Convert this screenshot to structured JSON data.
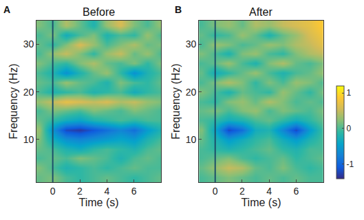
{
  "chart_data": [
    {
      "type": "heatmap",
      "panel": "A",
      "title": "Before",
      "x_label": "Time (s)",
      "y_label": "Frequency (Hz)",
      "x": [
        -1,
        0,
        1,
        2,
        3,
        4,
        5,
        6,
        7,
        8
      ],
      "y": [
        2,
        4,
        6,
        8,
        10,
        12,
        14,
        16,
        18,
        20,
        22,
        24,
        26,
        28,
        30,
        32,
        34
      ],
      "z": [
        [
          0.1,
          0.2,
          0,
          -0.1,
          0,
          0.1,
          0,
          -0.1,
          0,
          0.1
        ],
        [
          0.2,
          0,
          -0.2,
          -0.1,
          0,
          -0.1,
          0,
          0.1,
          0,
          0
        ],
        [
          0,
          0.1,
          0,
          0.2,
          0.1,
          0,
          -0.2,
          0,
          0.1,
          0
        ],
        [
          0.1,
          0,
          -0.2,
          -0.3,
          -0.1,
          0,
          -0.1,
          -0.2,
          0,
          0.1
        ],
        [
          0.2,
          -0.3,
          -0.6,
          -0.7,
          -0.6,
          -0.5,
          -0.4,
          -0.5,
          -0.2,
          0
        ],
        [
          0.3,
          -0.6,
          -1.2,
          -1.3,
          -1.1,
          -0.9,
          -0.7,
          -0.9,
          -0.5,
          -0.2
        ],
        [
          0.1,
          -0.1,
          -0.3,
          -0.4,
          -0.2,
          -0.1,
          0,
          -0.1,
          0,
          0
        ],
        [
          0,
          0.2,
          0.1,
          0,
          0.2,
          0.1,
          0,
          0.2,
          0.1,
          0
        ],
        [
          0.3,
          0.5,
          0.7,
          0.6,
          0.5,
          0.6,
          0.4,
          0.5,
          0.3,
          0.2
        ],
        [
          0,
          -0.2,
          -0.1,
          0,
          -0.2,
          -0.1,
          0,
          -0.3,
          -0.1,
          0
        ],
        [
          0.1,
          0,
          0.3,
          0.1,
          0,
          -0.2,
          0.2,
          0,
          -0.1,
          0.1
        ],
        [
          0,
          -0.2,
          -0.6,
          -0.2,
          0.1,
          0.3,
          -0.1,
          -0.6,
          -0.2,
          0
        ],
        [
          0.2,
          0,
          -0.1,
          0.2,
          0.4,
          0.1,
          0,
          0.2,
          -0.1,
          0.2
        ],
        [
          0,
          0.3,
          0.5,
          0.2,
          -0.1,
          0.3,
          0.5,
          0.1,
          0.3,
          0
        ],
        [
          0.1,
          -0.1,
          0.2,
          0.6,
          0.3,
          0,
          0.2,
          0.4,
          0.1,
          0.2
        ],
        [
          0,
          0.2,
          -0.3,
          0,
          0.2,
          -0.2,
          0,
          -0.1,
          0.3,
          0
        ],
        [
          0.2,
          0,
          0.4,
          0.1,
          -0.2,
          0.3,
          0.6,
          0.2,
          0,
          0.3
        ]
      ],
      "xlim": [
        -1.2,
        8
      ],
      "ylim": [
        1,
        35
      ],
      "xticks": [
        0,
        2,
        4,
        6
      ],
      "yticks": [
        10,
        20,
        30
      ],
      "event_line_x": 0,
      "colorbar_range": [
        -1.4,
        1.2
      ]
    },
    {
      "type": "heatmap",
      "panel": "B",
      "title": "After",
      "x_label": "Time (s)",
      "y_label": "Frequency (Hz)",
      "x": [
        -1,
        0,
        1,
        2,
        3,
        4,
        5,
        6,
        7,
        8
      ],
      "y": [
        2,
        4,
        6,
        8,
        10,
        12,
        14,
        16,
        18,
        20,
        22,
        24,
        26,
        28,
        30,
        32,
        34
      ],
      "z": [
        [
          0,
          0.1,
          0.2,
          0.1,
          0,
          0.1,
          0,
          0.1,
          0,
          0
        ],
        [
          0.1,
          0.3,
          0.5,
          0.4,
          0.1,
          0,
          0.2,
          0,
          -0.1,
          0
        ],
        [
          0,
          0.1,
          0.2,
          0,
          -0.1,
          0,
          0.1,
          -0.1,
          0,
          0.1
        ],
        [
          0,
          -0.1,
          -0.2,
          -0.1,
          0,
          0.1,
          -0.1,
          -0.2,
          0,
          0
        ],
        [
          0.1,
          -0.2,
          -0.5,
          -0.3,
          -0.1,
          0,
          -0.3,
          -0.5,
          -0.2,
          0
        ],
        [
          0.2,
          -0.4,
          -1.2,
          -0.9,
          -0.3,
          -0.2,
          -0.7,
          -1.2,
          -0.5,
          0
        ],
        [
          0,
          -0.1,
          -0.3,
          -0.2,
          0,
          0.1,
          -0.1,
          -0.3,
          -0.1,
          0.1
        ],
        [
          0.1,
          0.2,
          0,
          0.2,
          0.3,
          0,
          0.2,
          0.1,
          0,
          0.2
        ],
        [
          0,
          -0.1,
          0.2,
          0.3,
          0.1,
          0.4,
          0.2,
          0,
          0.1,
          0
        ],
        [
          0.2,
          0,
          -0.2,
          0.1,
          0,
          -0.1,
          0.3,
          0.1,
          -0.1,
          0.2
        ],
        [
          0,
          0.2,
          0.4,
          0.2,
          -0.1,
          0.2,
          0,
          0.3,
          0.2,
          0
        ],
        [
          0.1,
          -0.3,
          -0.1,
          0.1,
          0.3,
          0,
          -0.2,
          0,
          0.1,
          0.3
        ],
        [
          0,
          0.1,
          0.3,
          0,
          -0.2,
          0.2,
          0.4,
          0.1,
          0,
          0.2
        ],
        [
          0.2,
          0,
          -0.2,
          0.2,
          0.3,
          0,
          -0.1,
          0.2,
          0.4,
          0.5
        ],
        [
          0,
          0.3,
          0.2,
          0,
          0.1,
          0.3,
          0.2,
          0.4,
          0.5,
          0.7
        ],
        [
          0.1,
          -0.1,
          0,
          0.3,
          0.1,
          -0.2,
          0.1,
          0.3,
          0.6,
          0.8
        ],
        [
          0,
          0.2,
          0.3,
          0.1,
          0.4,
          0.3,
          0.5,
          0.6,
          0.7,
          0.9
        ]
      ],
      "xlim": [
        -1.2,
        8
      ],
      "ylim": [
        1,
        35
      ],
      "xticks": [
        0,
        2,
        4,
        6
      ],
      "yticks": [
        10,
        20,
        30
      ],
      "event_line_x": 0,
      "colorbar_range": [
        -1.4,
        1.2
      ],
      "colorbar_ticks": [
        -1,
        0,
        1
      ]
    }
  ]
}
